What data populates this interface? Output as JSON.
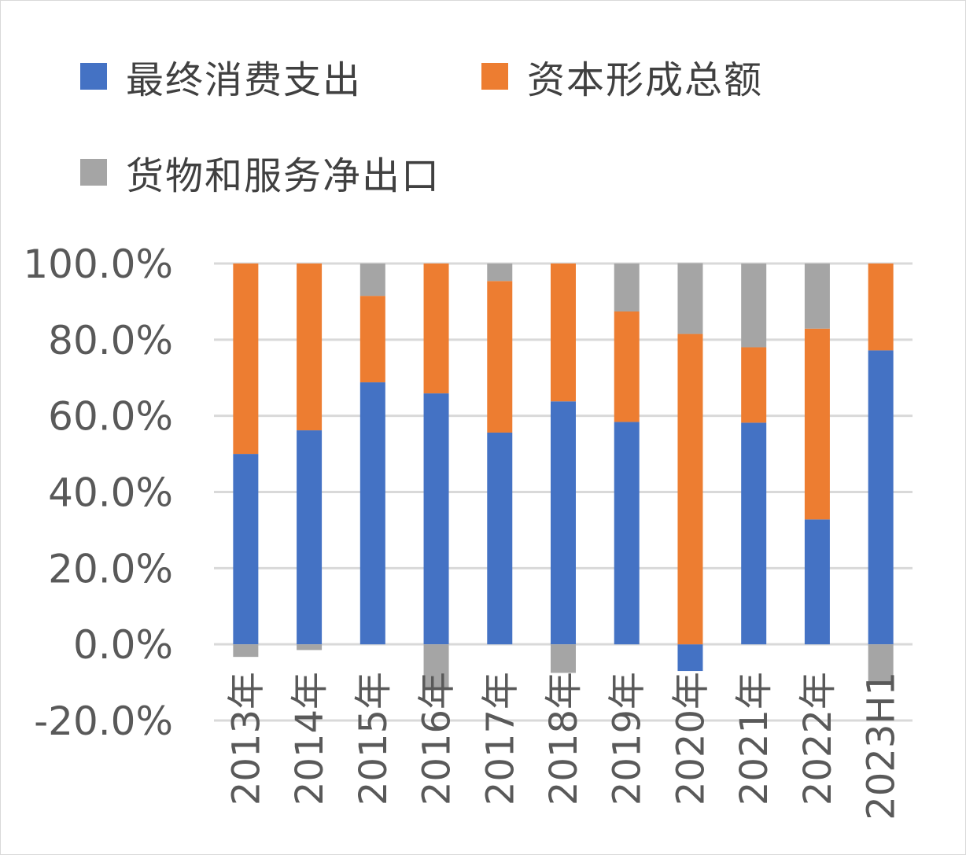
{
  "chart_data": {
    "type": "bar",
    "stacked": true,
    "categories": [
      "2013年",
      "2014年",
      "2015年",
      "2016年",
      "2017年",
      "2018年",
      "2019年",
      "2020年",
      "2021年",
      "2022年",
      "2023H1"
    ],
    "series": [
      {
        "name": "最终消费支出",
        "color": "#4472C4",
        "values": [
          50.0,
          56.2,
          68.8,
          65.9,
          55.6,
          63.8,
          58.4,
          -7.0,
          58.2,
          32.8,
          77.2
        ]
      },
      {
        "name": "资本形成总额",
        "color": "#ED7D31",
        "values": [
          50.0,
          43.8,
          22.7,
          34.1,
          39.8,
          36.2,
          29.0,
          81.5,
          19.8,
          50.1,
          22.8
        ]
      },
      {
        "name": "货物和服务净出口",
        "color": "#A5A5A5",
        "values": [
          -3.3,
          -1.5,
          8.5,
          -12.0,
          4.6,
          -7.5,
          12.6,
          18.6,
          22.0,
          17.1,
          -10.5
        ]
      }
    ],
    "ylim": [
      -20,
      100
    ],
    "yticks": [
      "-20.0%",
      "0.0%",
      "20.0%",
      "40.0%",
      "60.0%",
      "80.0%",
      "100.0%"
    ],
    "ytick_values": [
      -20,
      0,
      20,
      40,
      60,
      80,
      100
    ],
    "grid": true,
    "legend_position": "top",
    "title": "",
    "xlabel": "",
    "ylabel": ""
  }
}
